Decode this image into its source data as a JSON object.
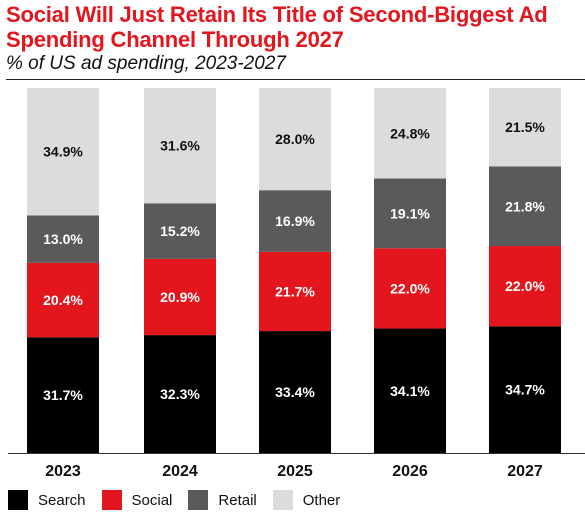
{
  "title": "Social Will Just Retain Its Title of Second-Biggest Ad Spending Channel Through 2027",
  "subtitle": "% of US ad spending, 2023-2027",
  "chart_data": {
    "type": "bar",
    "stacked": true,
    "categories": [
      "2023",
      "2024",
      "2025",
      "2026",
      "2027"
    ],
    "series": [
      {
        "name": "Search",
        "color": "#000000",
        "label_color": "#ffffff",
        "values": [
          31.7,
          32.3,
          33.4,
          34.1,
          34.7
        ],
        "labels": [
          "31.7%",
          "32.3%",
          "33.4%",
          "34.1%",
          "34.7%"
        ]
      },
      {
        "name": "Social",
        "color": "#e3151d",
        "label_color": "#ffffff",
        "values": [
          20.4,
          20.9,
          21.7,
          22.0,
          22.0
        ],
        "labels": [
          "20.4%",
          "20.9%",
          "21.7%",
          "22.0%",
          "22.0%"
        ]
      },
      {
        "name": "Retail",
        "color": "#5a5a5a",
        "label_color": "#ffffff",
        "values": [
          13.0,
          15.2,
          16.9,
          19.1,
          21.8
        ],
        "labels": [
          "13.0%",
          "15.2%",
          "16.9%",
          "19.1%",
          "21.8%"
        ]
      },
      {
        "name": "Other",
        "color": "#dcdcdc",
        "label_color": "#111111",
        "values": [
          34.9,
          31.6,
          28.0,
          24.8,
          21.5
        ],
        "labels": [
          "34.9%",
          "31.6%",
          "28.0%",
          "24.8%",
          "21.5%"
        ]
      }
    ],
    "ylim": [
      0,
      100
    ],
    "legend_position": "bottom-left"
  }
}
